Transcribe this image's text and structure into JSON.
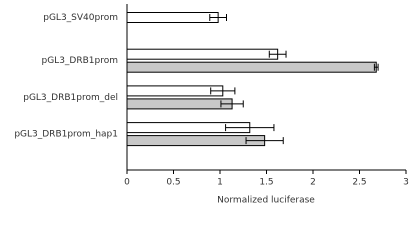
{
  "chart_data": {
    "type": "hbar",
    "categories": [
      "pGL3_SV40prom",
      "pGL3_DRB1prom",
      "pGL3_DRB1prom_del",
      "pGL3_DRB1prom_hap1"
    ],
    "series": [
      {
        "color": "#ffffff",
        "values": [
          0.98,
          1.62,
          1.03,
          1.32
        ],
        "errors": [
          0.09,
          0.09,
          0.13,
          0.26
        ]
      },
      {
        "color": "#c8c8c8",
        "values": [
          null,
          2.68,
          1.13,
          1.48
        ],
        "errors": [
          null,
          0.02,
          0.12,
          0.2
        ]
      }
    ],
    "edgecolor": "#000000",
    "xlabel": "Normalized luciferase",
    "xlim": [
      0,
      3
    ],
    "xticks": [
      0,
      0.5,
      1,
      1.5,
      2,
      2.5,
      3
    ]
  }
}
